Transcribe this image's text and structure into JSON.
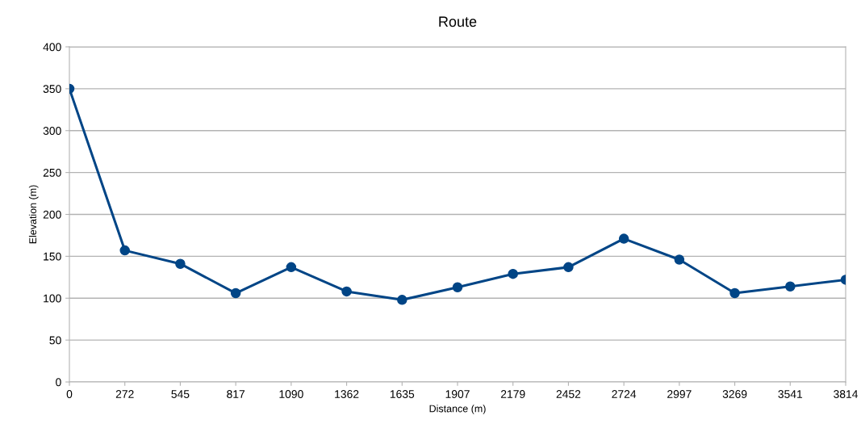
{
  "chart_data": {
    "type": "line",
    "title": "Route",
    "xlabel": "Distance (m)",
    "ylabel": "Elevation (m)",
    "categories": [
      "0",
      "272",
      "545",
      "817",
      "1090",
      "1362",
      "1635",
      "1907",
      "2179",
      "2452",
      "2724",
      "2997",
      "3269",
      "3541",
      "3814"
    ],
    "series": [
      {
        "color": "#004586",
        "values": [
          350,
          157,
          141,
          106,
          137,
          108,
          98,
          113,
          129,
          137,
          171,
          146,
          106,
          114,
          122
        ]
      }
    ],
    "ylim": [
      0,
      400
    ],
    "yticks": [
      0,
      50,
      100,
      150,
      200,
      250,
      300,
      350,
      400
    ],
    "grid": "y",
    "marker": "circle",
    "line_style": "solid",
    "legend": false
  }
}
